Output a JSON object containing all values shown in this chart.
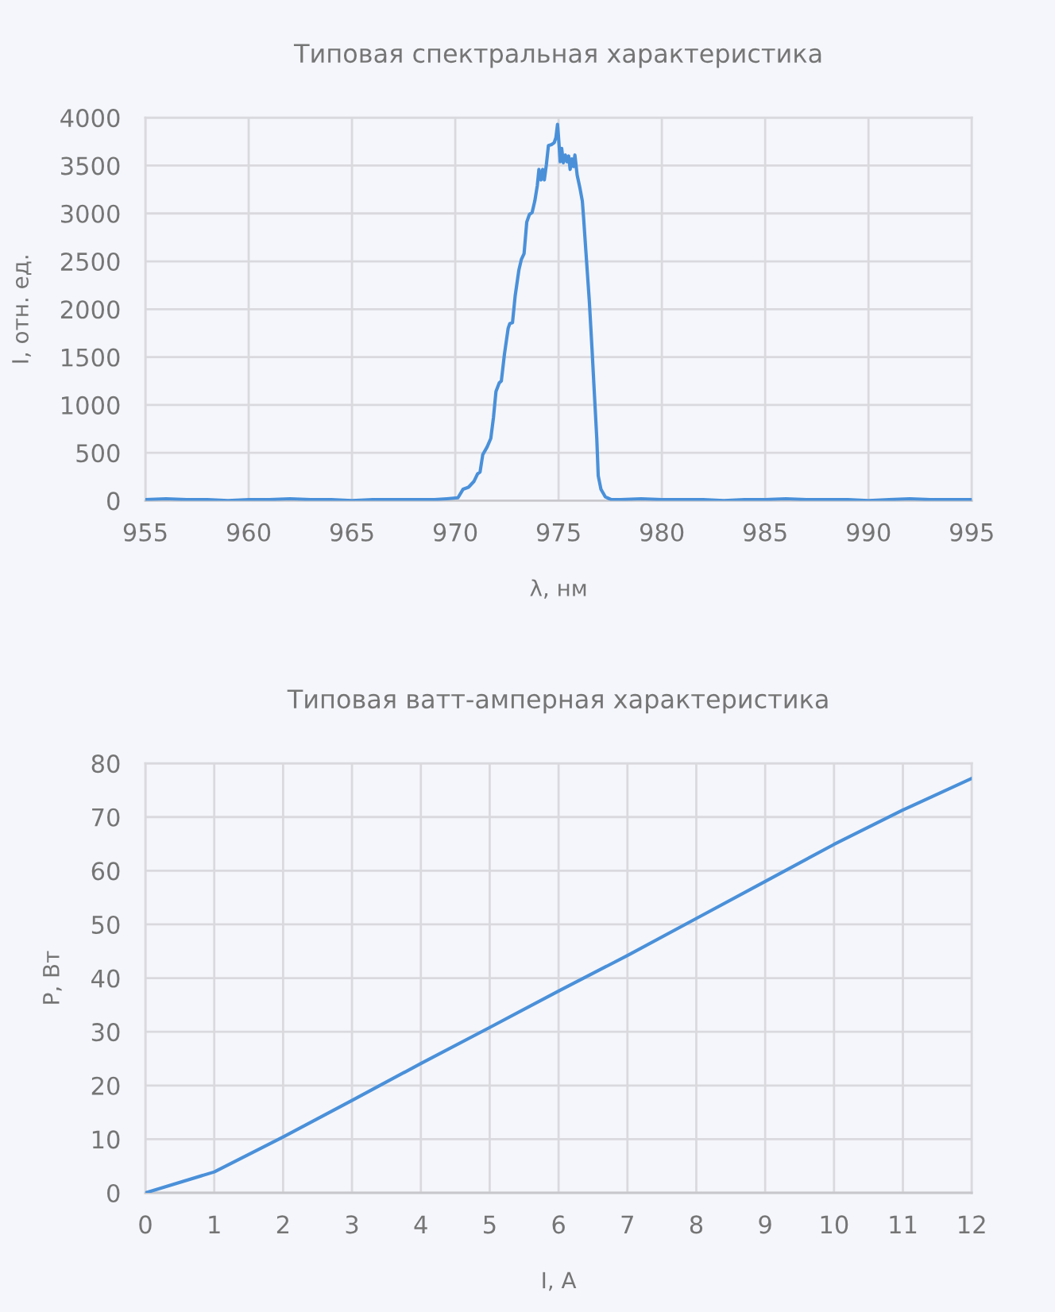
{
  "chart_data": [
    {
      "type": "line",
      "title": "Типовая спектральная характеристика",
      "xlabel": "λ, нм",
      "ylabel": "I, отн. ед.",
      "x": [
        955,
        956,
        957,
        958,
        959,
        960,
        961,
        962,
        963,
        964,
        965,
        966,
        967,
        968,
        969,
        969.6,
        970.13,
        970.38,
        970.64,
        970.9,
        971.08,
        971.2,
        971.33,
        971.54,
        971.72,
        971.85,
        971.97,
        972.13,
        972.23,
        972.38,
        972.56,
        972.64,
        972.77,
        972.9,
        973.08,
        973.2,
        973.33,
        973.46,
        973.59,
        973.72,
        973.85,
        973.97,
        974.05,
        974.15,
        974.23,
        974.31,
        974.41,
        974.51,
        974.67,
        974.79,
        974.87,
        974.95,
        975.0,
        975.08,
        975.15,
        975.23,
        975.33,
        975.41,
        975.49,
        975.56,
        975.64,
        975.72,
        975.79,
        975.9,
        976.03,
        976.15,
        976.21,
        976.33,
        976.49,
        976.62,
        976.74,
        976.85,
        976.92,
        977.05,
        977.26,
        977.56,
        978,
        979,
        980,
        981,
        982,
        983,
        984,
        985,
        986,
        987,
        988,
        989,
        990,
        991,
        992,
        993,
        994,
        995
      ],
      "series": [
        {
          "color": "#4a90d9",
          "values": [
            10,
            20,
            10,
            10,
            0,
            10,
            10,
            20,
            10,
            10,
            0,
            10,
            10,
            10,
            10,
            20,
            30,
            120,
            140,
            200,
            280,
            300,
            480,
            560,
            650,
            870,
            1140,
            1230,
            1250,
            1530,
            1800,
            1850,
            1860,
            2140,
            2410,
            2520,
            2580,
            2910,
            2990,
            3010,
            3130,
            3290,
            3460,
            3350,
            3460,
            3350,
            3510,
            3710,
            3720,
            3740,
            3790,
            3930,
            3790,
            3540,
            3680,
            3530,
            3610,
            3540,
            3600,
            3460,
            3570,
            3490,
            3610,
            3400,
            3270,
            3130,
            2960,
            2580,
            2080,
            1580,
            1090,
            650,
            260,
            120,
            40,
            10,
            10,
            20,
            10,
            10,
            10,
            0,
            10,
            10,
            20,
            10,
            10,
            10,
            0,
            10,
            20,
            10,
            10,
            10
          ]
        }
      ],
      "xlim": [
        955,
        995
      ],
      "xticks": [
        955,
        960,
        965,
        970,
        975,
        980,
        985,
        990,
        995
      ],
      "ylim": [
        0,
        4000
      ],
      "yticks": [
        0,
        500,
        1000,
        1500,
        2000,
        2500,
        3000,
        3500,
        4000
      ],
      "grid": true
    },
    {
      "type": "line",
      "title": "Типовая ватт-амперная характеристика",
      "xlabel": "I, A",
      "ylabel": "P, Вт",
      "x": [
        0,
        1,
        2,
        3,
        4,
        5,
        6,
        7,
        8,
        9,
        10,
        11,
        12
      ],
      "series": [
        {
          "color": "#4a90d9",
          "values": [
            0,
            3.9,
            10.4,
            17.2,
            24.1,
            30.8,
            37.6,
            44.2,
            51.1,
            58.0,
            64.9,
            71.3,
            77.2
          ]
        }
      ],
      "xlim": [
        0,
        12
      ],
      "xticks": [
        0,
        1,
        2,
        3,
        4,
        5,
        6,
        7,
        8,
        9,
        10,
        11,
        12
      ],
      "ylim": [
        0,
        80
      ],
      "yticks": [
        0,
        10,
        20,
        30,
        40,
        50,
        60,
        70,
        80
      ],
      "grid": true
    }
  ]
}
